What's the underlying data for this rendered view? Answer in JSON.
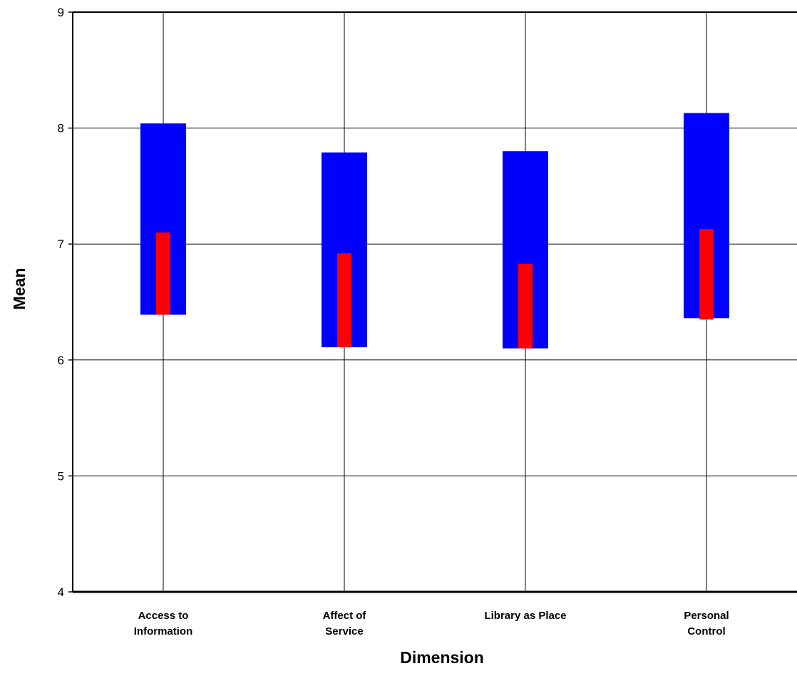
{
  "chart_data": {
    "type": "bar",
    "title": "",
    "xlabel": "Dimension",
    "ylabel": "Mean",
    "ylim": [
      4,
      9
    ],
    "yticks": [
      4,
      5,
      6,
      7,
      8,
      9
    ],
    "grid": true,
    "legend": "none",
    "categories": [
      [
        "Access to",
        "Information"
      ],
      [
        "Affect of",
        "Service"
      ],
      [
        "Library as Place"
      ],
      [
        "Personal",
        "Control"
      ]
    ],
    "series": [
      {
        "color": "#0000ff",
        "low": [
          6.39,
          6.11,
          6.1,
          6.36
        ],
        "high": [
          8.04,
          7.79,
          7.8,
          8.13
        ]
      },
      {
        "color": "#ff0000",
        "low": [
          6.39,
          6.11,
          6.1,
          6.35
        ],
        "high": [
          7.1,
          6.92,
          6.83,
          7.13
        ]
      }
    ]
  }
}
